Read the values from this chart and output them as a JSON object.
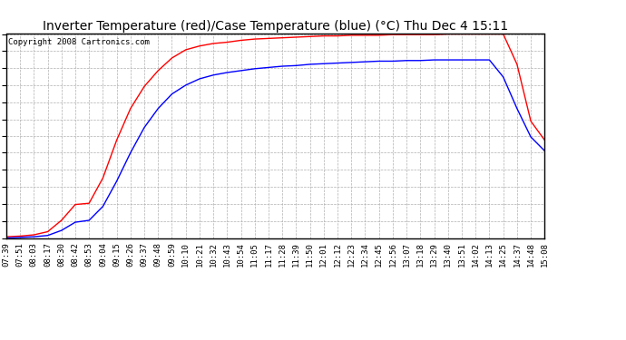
{
  "title": "Inverter Temperature (red)/Case Temperature (blue) (°C) Thu Dec 4 15:11",
  "copyright": "Copyright 2008 Cartronics.com",
  "background_color": "#ffffff",
  "plot_background": "#ffffff",
  "grid_color": "#b0b0b0",
  "yticks": [
    11.0,
    13.7,
    16.4,
    19.1,
    21.8,
    24.5,
    27.1,
    29.8,
    32.5,
    35.2,
    37.9,
    40.6,
    43.3
  ],
  "ymin": 11.0,
  "ymax": 43.3,
  "xtick_labels": [
    "07:39",
    "07:51",
    "08:03",
    "08:17",
    "08:30",
    "08:42",
    "08:53",
    "09:04",
    "09:15",
    "09:26",
    "09:37",
    "09:48",
    "09:59",
    "10:10",
    "10:21",
    "10:32",
    "10:43",
    "10:54",
    "11:05",
    "11:17",
    "11:28",
    "11:39",
    "11:50",
    "12:01",
    "12:12",
    "12:23",
    "12:34",
    "12:45",
    "12:56",
    "13:07",
    "13:18",
    "13:29",
    "13:40",
    "13:51",
    "14:02",
    "14:13",
    "14:25",
    "14:37",
    "14:48",
    "15:08"
  ],
  "red_data": [
    11.2,
    11.3,
    11.5,
    12.0,
    13.8,
    16.3,
    16.5,
    20.5,
    26.5,
    31.5,
    35.0,
    37.5,
    39.5,
    40.8,
    41.4,
    41.8,
    42.0,
    42.3,
    42.5,
    42.6,
    42.7,
    42.8,
    42.9,
    43.0,
    43.0,
    43.1,
    43.1,
    43.1,
    43.2,
    43.2,
    43.2,
    43.2,
    43.3,
    43.3,
    43.3,
    43.3,
    43.3,
    38.5,
    29.5,
    26.5
  ],
  "blue_data": [
    11.0,
    11.1,
    11.2,
    11.4,
    12.2,
    13.5,
    13.8,
    16.0,
    20.0,
    24.5,
    28.5,
    31.5,
    33.8,
    35.2,
    36.2,
    36.8,
    37.2,
    37.5,
    37.8,
    38.0,
    38.2,
    38.3,
    38.5,
    38.6,
    38.7,
    38.8,
    38.9,
    39.0,
    39.0,
    39.1,
    39.1,
    39.2,
    39.2,
    39.2,
    39.2,
    39.2,
    36.5,
    31.5,
    27.0,
    24.8
  ],
  "red_color": "#ff0000",
  "blue_color": "#0000ff",
  "title_fontsize": 10,
  "tick_fontsize": 6.5,
  "copyright_fontsize": 6.5
}
